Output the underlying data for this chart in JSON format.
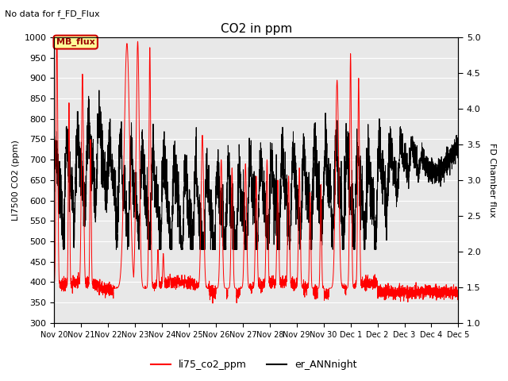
{
  "title": "CO2 in ppm",
  "subtitle": "No data for f_FD_Flux",
  "ylabel_left": "LI7500 CO2 (ppm)",
  "ylabel_right": "FD Chamber flux",
  "ylim_left": [
    300,
    1000
  ],
  "ylim_right": [
    1.0,
    5.0
  ],
  "yticks_left": [
    300,
    350,
    400,
    450,
    500,
    550,
    600,
    650,
    700,
    750,
    800,
    850,
    900,
    950,
    1000
  ],
  "yticks_right": [
    1.0,
    1.5,
    2.0,
    2.5,
    3.0,
    3.5,
    4.0,
    4.5,
    5.0
  ],
  "xtick_labels": [
    "Nov 20",
    "Nov 21",
    "Nov 22",
    "Nov 23",
    "Nov 24",
    "Nov 25",
    "Nov 26",
    "Nov 27",
    "Nov 28",
    "Nov 29",
    "Nov 30",
    "Dec 1",
    "Dec 2",
    "Dec 3",
    "Dec 4",
    "Dec 5"
  ],
  "legend_label_red": "li75_co2_ppm",
  "legend_label_black": "er_ANNnight",
  "inset_label": "MB_flux",
  "plot_bg_color": "#e8e8e8",
  "grid_color": "#ffffff",
  "red_color": "#ff0000",
  "black_color": "#000000",
  "inset_bg": "#ffff99",
  "inset_edge": "#cc0000"
}
